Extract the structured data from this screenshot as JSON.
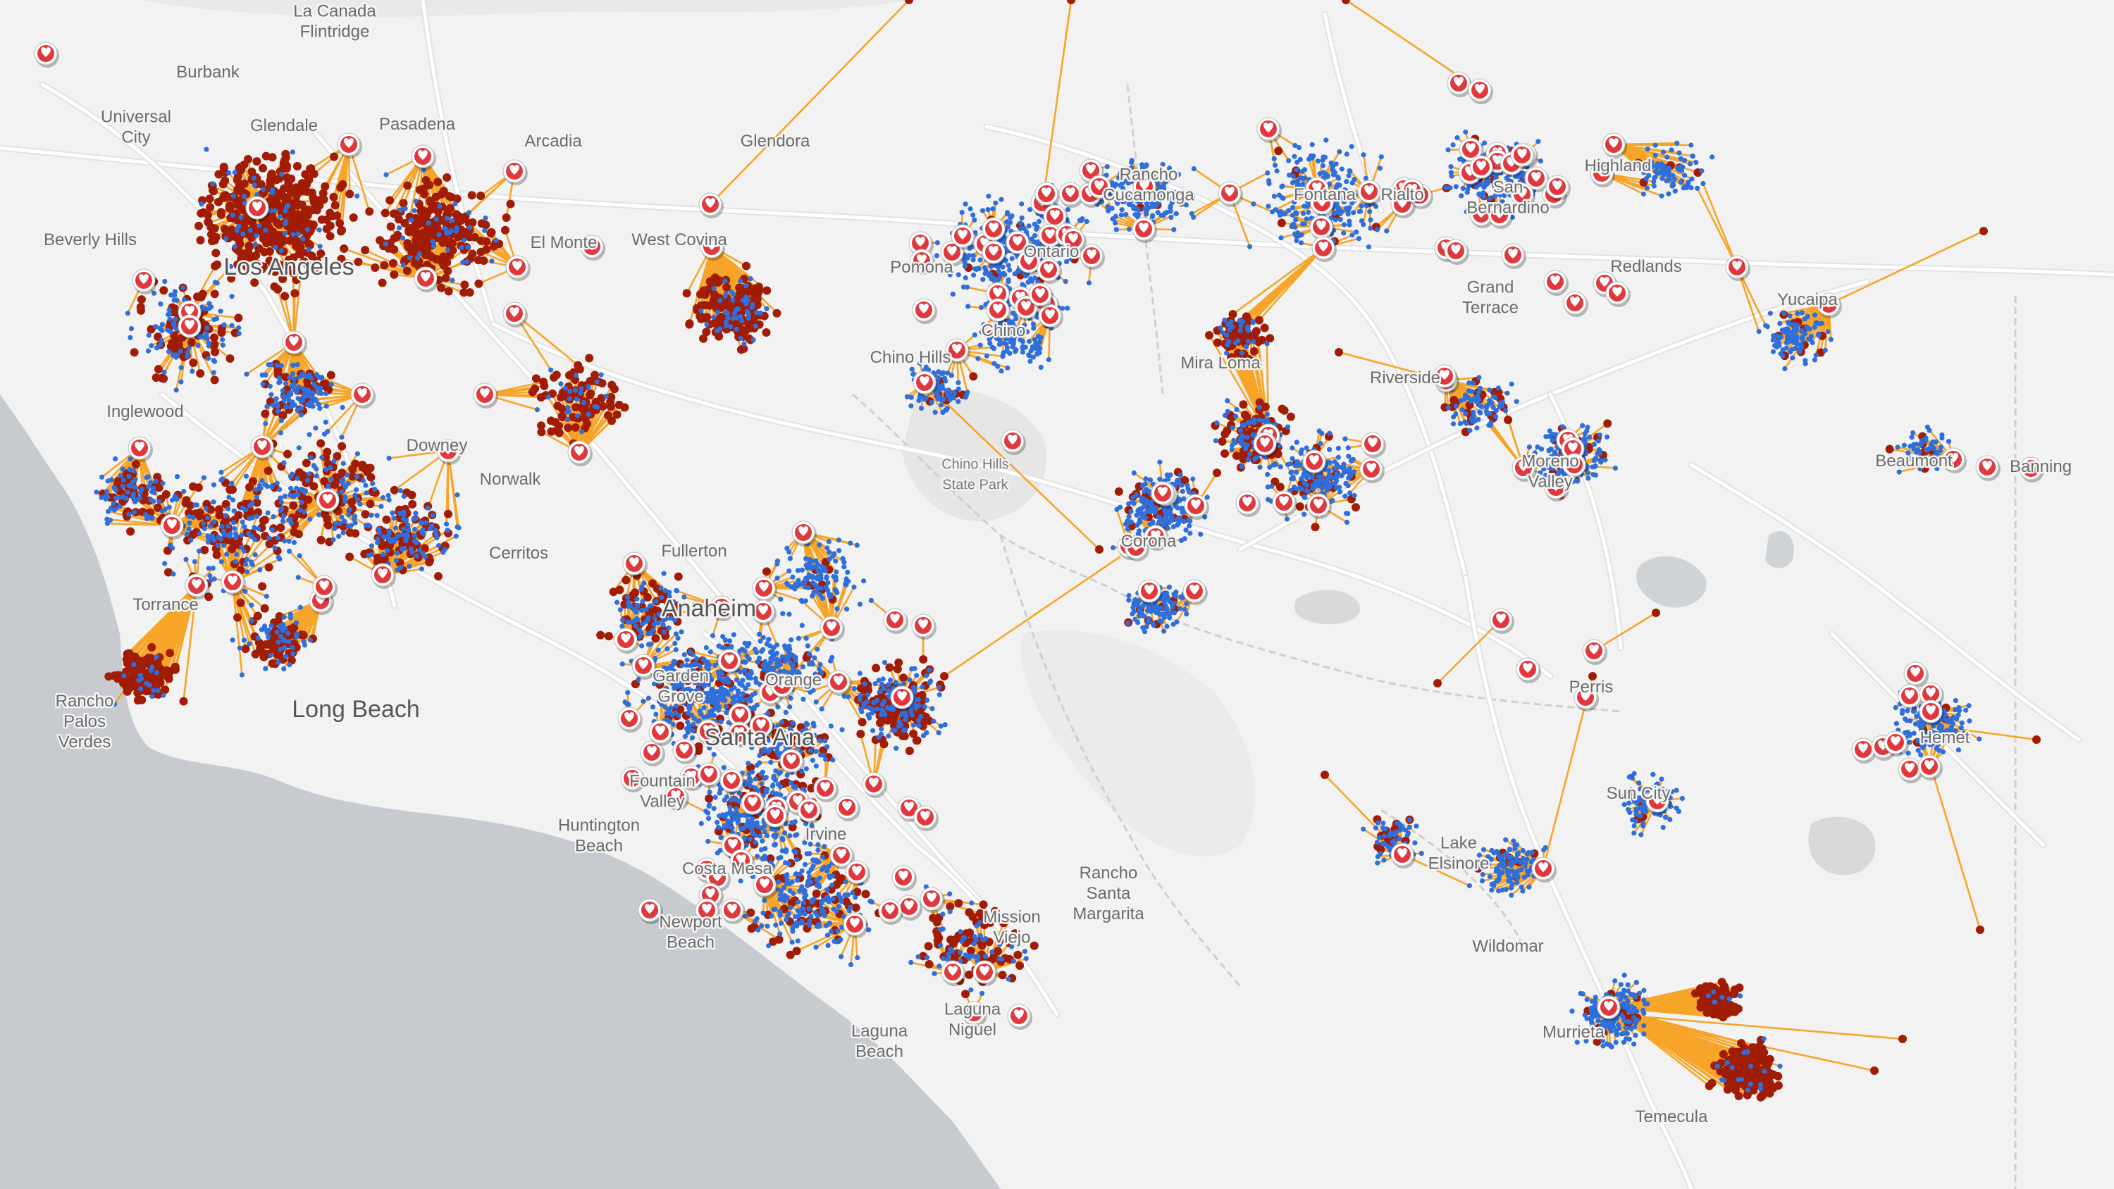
{
  "colors": {
    "land": "#f2f2f2",
    "water": "#c7cbcf",
    "road": "#ffffff",
    "park": "#e6e6e6",
    "boundary": "#cfcfcf",
    "link": "#f5a01e",
    "unserved_point": "#a11c04",
    "served_point": "#2f6fdc",
    "facility_fill": "#e0383d",
    "facility_ring": "#ffffff"
  },
  "legend_semantics": {
    "facility_icon": "heart-marker-icon",
    "served_point": "blue-dot",
    "unserved_point": "dark-red-dot",
    "allocation_line": "orange-line"
  },
  "places": [
    {
      "name": "La Canada\nFlintridge",
      "major": false
    },
    {
      "name": "Burbank",
      "major": false
    },
    {
      "name": "Universal\nCity",
      "major": false
    },
    {
      "name": "Glendale",
      "major": false
    },
    {
      "name": "Pasadena",
      "major": false
    },
    {
      "name": "Arcadia",
      "major": false
    },
    {
      "name": "Glendora",
      "major": false
    },
    {
      "name": "Beverly Hills",
      "major": false
    },
    {
      "name": "Los Angeles",
      "major": true
    },
    {
      "name": "El Monte",
      "major": false
    },
    {
      "name": "West Covina",
      "major": false
    },
    {
      "name": "Inglewood",
      "major": false
    },
    {
      "name": "Downey",
      "major": false
    },
    {
      "name": "Norwalk",
      "major": false
    },
    {
      "name": "Cerritos",
      "major": false
    },
    {
      "name": "Torrance",
      "major": false
    },
    {
      "name": "Long Beach",
      "major": true
    },
    {
      "name": "Rancho\nPalos\nVerdes",
      "major": false
    },
    {
      "name": "Fullerton",
      "major": false
    },
    {
      "name": "Anaheim",
      "major": true
    },
    {
      "name": "Garden\nGrove",
      "major": false
    },
    {
      "name": "Orange",
      "major": false
    },
    {
      "name": "Santa Ana",
      "major": true
    },
    {
      "name": "Fountain\nValley",
      "major": false
    },
    {
      "name": "Huntington\nBeach",
      "major": false
    },
    {
      "name": "Costa Mesa",
      "major": false
    },
    {
      "name": "Irvine",
      "major": false
    },
    {
      "name": "Newport\nBeach",
      "major": false
    },
    {
      "name": "Mission\nViejo",
      "major": false
    },
    {
      "name": "Rancho\nSanta\nMargarita",
      "major": false
    },
    {
      "name": "Laguna\nNiguel",
      "major": false
    },
    {
      "name": "Laguna\nBeach",
      "major": false
    },
    {
      "name": "Pomona",
      "major": false
    },
    {
      "name": "Rancho\nCucamonga",
      "major": false
    },
    {
      "name": "Ontario",
      "major": false
    },
    {
      "name": "Chino",
      "major": false
    },
    {
      "name": "Chino Hills",
      "major": false
    },
    {
      "name": "Chino Hills\nState Park",
      "major": false
    },
    {
      "name": "Fontana",
      "major": false
    },
    {
      "name": "Rialto",
      "major": false
    },
    {
      "name": "San\nBernardino",
      "major": false
    },
    {
      "name": "Highland",
      "major": false
    },
    {
      "name": "Redlands",
      "major": false
    },
    {
      "name": "Grand\nTerrace",
      "major": false
    },
    {
      "name": "Yucaipa",
      "major": false
    },
    {
      "name": "Mira Loma",
      "major": false
    },
    {
      "name": "Riverside",
      "major": false
    },
    {
      "name": "Moreno\nValley",
      "major": false
    },
    {
      "name": "Beaumont",
      "major": false
    },
    {
      "name": "Banning",
      "major": false
    },
    {
      "name": "Corona",
      "major": false
    },
    {
      "name": "Perris",
      "major": false
    },
    {
      "name": "Hemet",
      "major": false
    },
    {
      "name": "Sun City",
      "major": false
    },
    {
      "name": "Lake\nElsinore",
      "major": false
    },
    {
      "name": "Wildomar",
      "major": false
    },
    {
      "name": "Murrieta",
      "major": false
    },
    {
      "name": "Temecula",
      "major": false
    }
  ]
}
